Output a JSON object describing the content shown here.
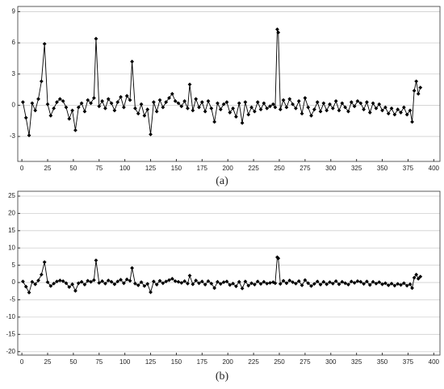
{
  "chart_data": [
    {
      "type": "line",
      "label": "(a)",
      "color": "#000000",
      "grid": true,
      "xlim": [
        -4,
        406
      ],
      "xticks": [
        0,
        25,
        50,
        75,
        100,
        125,
        150,
        175,
        200,
        225,
        250,
        275,
        300,
        325,
        350,
        375,
        400
      ],
      "ylim": [
        -5.4,
        9.5
      ],
      "yticks": [
        -3,
        0,
        3,
        6,
        9
      ],
      "x": [
        1,
        4,
        7,
        10,
        13,
        16,
        19,
        22,
        25,
        28,
        31,
        34,
        37,
        40,
        43,
        46,
        49,
        52,
        55,
        58,
        61,
        64,
        67,
        70,
        72,
        75,
        78,
        81,
        84,
        87,
        90,
        93,
        96,
        99,
        102,
        105,
        107,
        110,
        113,
        116,
        119,
        122,
        125,
        128,
        131,
        134,
        137,
        140,
        143,
        146,
        149,
        152,
        155,
        158,
        161,
        163,
        166,
        169,
        172,
        175,
        178,
        181,
        184,
        187,
        190,
        193,
        196,
        199,
        202,
        205,
        208,
        211,
        214,
        217,
        220,
        223,
        226,
        229,
        232,
        235,
        238,
        241,
        244,
        246,
        248,
        249,
        251,
        254,
        257,
        260,
        263,
        266,
        269,
        272,
        275,
        278,
        281,
        284,
        287,
        290,
        293,
        296,
        299,
        302,
        305,
        308,
        311,
        314,
        317,
        320,
        323,
        326,
        329,
        332,
        335,
        338,
        341,
        344,
        347,
        350,
        353,
        356,
        359,
        362,
        365,
        368,
        371,
        374,
        377,
        379,
        381,
        383,
        385,
        387
      ],
      "values": [
        0.3,
        -1.2,
        -2.9,
        0.2,
        -0.5,
        0.6,
        2.3,
        5.9,
        0.1,
        -1.0,
        -0.3,
        0.3,
        0.6,
        0.4,
        -0.2,
        -1.3,
        -0.5,
        -2.4,
        -0.2,
        0.2,
        -0.6,
        0.5,
        0.2,
        0.7,
        6.4,
        -0.1,
        0.4,
        -0.3,
        0.6,
        0.2,
        -0.5,
        0.3,
        0.8,
        -0.2,
        0.9,
        0.5,
        4.2,
        -0.3,
        -0.8,
        0.1,
        -1.0,
        -0.4,
        -2.8,
        0.3,
        -0.6,
        0.5,
        -0.2,
        0.3,
        0.7,
        1.1,
        0.4,
        0.2,
        -0.1,
        0.4,
        -0.3,
        2.0,
        -0.5,
        0.6,
        -0.2,
        0.3,
        -0.6,
        0.4,
        -0.3,
        -1.6,
        0.2,
        -0.4,
        0.1,
        0.3,
        -0.7,
        -0.3,
        -1.1,
        0.2,
        -1.7,
        0.3,
        -0.9,
        -0.2,
        -0.6,
        0.3,
        -0.4,
        0.2,
        -0.3,
        -0.1,
        0.1,
        -0.2,
        7.3,
        7.0,
        -0.4,
        0.5,
        -0.2,
        0.6,
        0.1,
        -0.3,
        0.4,
        -0.8,
        0.7,
        -0.2,
        -1.0,
        -0.4,
        0.3,
        -0.6,
        0.2,
        -0.5,
        0.1,
        -0.3,
        0.4,
        -0.5,
        0.2,
        -0.2,
        -0.6,
        0.3,
        -0.1,
        0.4,
        0.2,
        -0.4,
        0.3,
        -0.7,
        0.2,
        -0.3,
        0.1,
        -0.5,
        -0.2,
        -0.8,
        -0.3,
        -0.9,
        -0.4,
        -0.7,
        -0.2,
        -0.9,
        -0.5,
        -1.6,
        1.4,
        2.3,
        1.1,
        1.7
      ]
    },
    {
      "type": "line",
      "label": "(b)",
      "color": "#000000",
      "grid": true,
      "xlim": [
        -4,
        406
      ],
      "xticks": [
        0,
        25,
        50,
        75,
        100,
        125,
        150,
        175,
        200,
        225,
        250,
        275,
        300,
        325,
        350,
        375,
        400
      ],
      "ylim": [
        -21,
        26.4
      ],
      "yticks": [
        -20,
        -15,
        -10,
        -5,
        0,
        5,
        10,
        15,
        20,
        25
      ],
      "x": [
        1,
        4,
        7,
        10,
        13,
        16,
        19,
        22,
        25,
        28,
        31,
        34,
        37,
        40,
        43,
        46,
        49,
        52,
        55,
        58,
        61,
        64,
        67,
        70,
        72,
        75,
        78,
        81,
        84,
        87,
        90,
        93,
        96,
        99,
        102,
        105,
        107,
        110,
        113,
        116,
        119,
        122,
        125,
        128,
        131,
        134,
        137,
        140,
        143,
        146,
        149,
        152,
        155,
        158,
        161,
        163,
        166,
        169,
        172,
        175,
        178,
        181,
        184,
        187,
        190,
        193,
        196,
        199,
        202,
        205,
        208,
        211,
        214,
        217,
        220,
        223,
        226,
        229,
        232,
        235,
        238,
        241,
        244,
        246,
        248,
        249,
        251,
        254,
        257,
        260,
        263,
        266,
        269,
        272,
        275,
        278,
        281,
        284,
        287,
        290,
        293,
        296,
        299,
        302,
        305,
        308,
        311,
        314,
        317,
        320,
        323,
        326,
        329,
        332,
        335,
        338,
        341,
        344,
        347,
        350,
        353,
        356,
        359,
        362,
        365,
        368,
        371,
        374,
        377,
        379,
        381,
        383,
        385,
        387
      ],
      "values": [
        0.3,
        -1.2,
        -2.9,
        0.2,
        -0.5,
        0.6,
        2.3,
        5.9,
        0.1,
        -1.0,
        -0.3,
        0.3,
        0.6,
        0.4,
        -0.2,
        -1.3,
        -0.5,
        -2.4,
        -0.2,
        0.2,
        -0.6,
        0.5,
        0.2,
        0.7,
        6.4,
        -0.1,
        0.4,
        -0.3,
        0.6,
        0.2,
        -0.5,
        0.3,
        0.8,
        -0.2,
        0.9,
        0.5,
        4.2,
        -0.3,
        -0.8,
        0.1,
        -1.0,
        -0.4,
        -2.8,
        0.3,
        -0.6,
        0.5,
        -0.2,
        0.3,
        0.7,
        1.1,
        0.4,
        0.2,
        -0.1,
        0.4,
        -0.3,
        2.0,
        -0.5,
        0.6,
        -0.2,
        0.3,
        -0.6,
        0.4,
        -0.3,
        -1.6,
        0.2,
        -0.4,
        0.1,
        0.3,
        -0.7,
        -0.3,
        -1.1,
        0.2,
        -1.7,
        0.3,
        -0.9,
        -0.2,
        -0.6,
        0.3,
        -0.4,
        0.2,
        -0.3,
        -0.1,
        0.1,
        -0.2,
        7.3,
        7.0,
        -0.4,
        0.5,
        -0.2,
        0.6,
        0.1,
        -0.3,
        0.4,
        -0.8,
        0.7,
        -0.2,
        -1.0,
        -0.4,
        0.3,
        -0.6,
        0.2,
        -0.5,
        0.1,
        -0.3,
        0.4,
        -0.5,
        0.2,
        -0.2,
        -0.6,
        0.3,
        -0.1,
        0.4,
        0.2,
        -0.4,
        0.3,
        -0.7,
        0.2,
        -0.3,
        0.1,
        -0.5,
        -0.2,
        -0.8,
        -0.3,
        -0.9,
        -0.4,
        -0.7,
        -0.2,
        -0.9,
        -0.5,
        -1.6,
        1.4,
        2.3,
        1.1,
        1.7
      ]
    }
  ]
}
